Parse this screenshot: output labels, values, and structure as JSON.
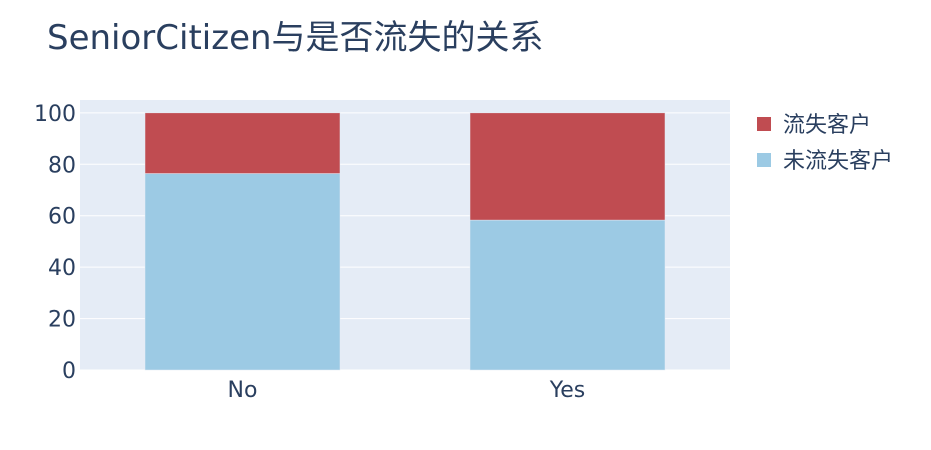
{
  "chart_data": {
    "type": "bar",
    "stacked": true,
    "title": "SeniorCitizen与是否流失的关系",
    "xlabel": "",
    "ylabel": "",
    "categories": [
      "No",
      "Yes"
    ],
    "ylim": [
      0,
      105
    ],
    "y_ticks": [
      0,
      20,
      40,
      60,
      80,
      100
    ],
    "grid": true,
    "legend_position": "top-right",
    "series": [
      {
        "name": "未流失客户",
        "values": [
          76.4,
          58.3
        ],
        "color": "#9ccae4"
      },
      {
        "name": "流失客户",
        "values": [
          23.6,
          41.7
        ],
        "color": "#c04c51"
      }
    ],
    "legend_order": [
      "流失客户",
      "未流失客户"
    ],
    "plot_background": "#e5ecf6",
    "text_color": "#2a3f5f"
  }
}
